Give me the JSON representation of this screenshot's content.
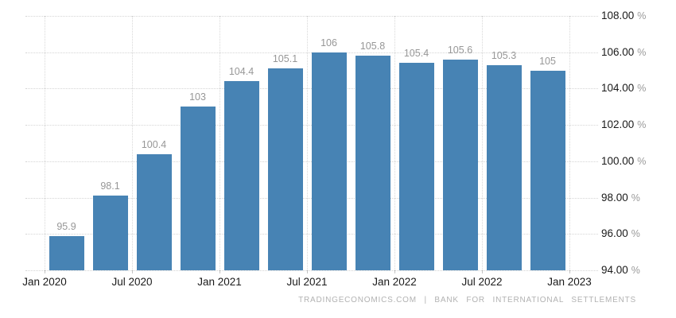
{
  "chart_data": {
    "type": "bar",
    "title": "",
    "xlabel": "",
    "ylabel": "",
    "x_tick_labels": [
      "Jan 2020",
      "Jul 2020",
      "Jan 2021",
      "Jul 2021",
      "Jan 2022",
      "Jul 2022",
      "Jan 2023"
    ],
    "values": [
      95.9,
      98.1,
      100.4,
      103,
      104.4,
      105.1,
      106,
      105.8,
      105.4,
      105.6,
      105.3,
      105
    ],
    "bar_labels": [
      "95.9",
      "98.1",
      "100.4",
      "103",
      "104.4",
      "105.1",
      "106",
      "105.8",
      "105.4",
      "105.6",
      "105.3",
      "105"
    ],
    "ylim": [
      94,
      108
    ],
    "y_tick_values": [
      108,
      106,
      104,
      102,
      100,
      98,
      96,
      94
    ],
    "y_tick_labels": [
      "108.00 %",
      "106.00 %",
      "104.00 %",
      "102.00 %",
      "100.00 %",
      "98.00 %",
      "96.00 %",
      "94.00 %"
    ],
    "grid": "dotted",
    "legend": "none"
  },
  "colors": {
    "bar": "#4783b4",
    "grid": "#d5d5d5",
    "axis_text": "#1a1a1a",
    "value_label": "#979797",
    "unit_text": "#9a9a9a",
    "footer_text": "#b2b2b2"
  },
  "footer": {
    "attribution": "TRADINGECONOMICS.COM | BANK FOR INTERNATIONAL SETTLEMENTS"
  }
}
